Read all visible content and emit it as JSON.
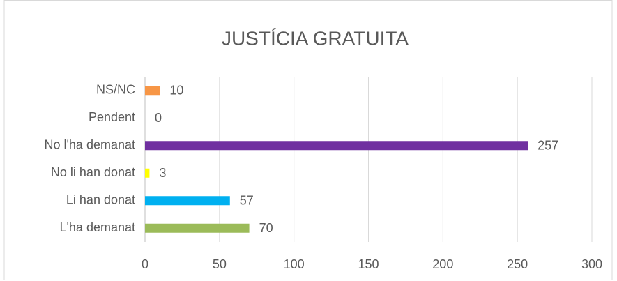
{
  "chart_data": {
    "type": "bar",
    "orientation": "horizontal",
    "title": "JUSTÍCIA GRATUITA",
    "categories": [
      "NS/NC",
      "Pendent",
      "No l'ha demanat",
      "No li han donat",
      "Li han donat",
      "L'ha demanat"
    ],
    "values": [
      10,
      0,
      257,
      3,
      57,
      70
    ],
    "colors": [
      "#f79646",
      "#a5a5a5",
      "#7030a0",
      "#ffff00",
      "#00b0f0",
      "#9bbb59"
    ],
    "xlim": [
      0,
      300
    ],
    "xticks": [
      0,
      50,
      100,
      150,
      200,
      250,
      300
    ],
    "grid": true
  }
}
